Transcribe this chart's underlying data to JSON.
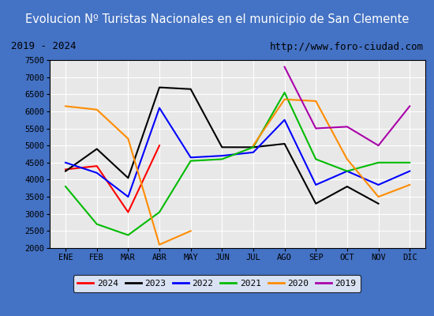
{
  "title": "Evolucion Nº Turistas Nacionales en el municipio de San Clemente",
  "subtitle_left": "2019 - 2024",
  "subtitle_right": "http://www.foro-ciudad.com",
  "months": [
    "ENE",
    "FEB",
    "MAR",
    "ABR",
    "MAY",
    "JUN",
    "JUL",
    "AGO",
    "SEP",
    "OCT",
    "NOV",
    "DIC"
  ],
  "series": {
    "2024": [
      4300,
      4400,
      3050,
      5000,
      null,
      null,
      null,
      null,
      null,
      null,
      null,
      null
    ],
    "2023": [
      4250,
      4900,
      4050,
      6700,
      6650,
      4950,
      4950,
      5050,
      3300,
      3800,
      3300,
      null
    ],
    "2022": [
      4500,
      4200,
      3500,
      6100,
      4650,
      4700,
      4800,
      5750,
      3850,
      4250,
      3850,
      4250
    ],
    "2021": [
      3800,
      2700,
      2380,
      3050,
      4550,
      4600,
      4950,
      6550,
      4600,
      4250,
      4500,
      4500
    ],
    "2020": [
      6150,
      6050,
      5200,
      2100,
      2500,
      null,
      5000,
      6350,
      6300,
      4600,
      3500,
      3850
    ],
    "2019": [
      null,
      null,
      null,
      null,
      null,
      null,
      null,
      7300,
      5500,
      5550,
      5000,
      6150
    ]
  },
  "colors": {
    "2024": "#ff0000",
    "2023": "#000000",
    "2022": "#0000ff",
    "2021": "#00bb00",
    "2020": "#ff8c00",
    "2019": "#aa00aa"
  },
  "ylim": [
    2000,
    7500
  ],
  "yticks": [
    2000,
    2500,
    3000,
    3500,
    4000,
    4500,
    5000,
    5500,
    6000,
    6500,
    7000,
    7500
  ],
  "title_bg": "#5b8dd9",
  "title_color": "#ffffff",
  "subtitle_bg": "#f0f0f0",
  "plot_bg": "#e8e8e8",
  "grid_color": "#ffffff",
  "border_color": "#4472c4"
}
